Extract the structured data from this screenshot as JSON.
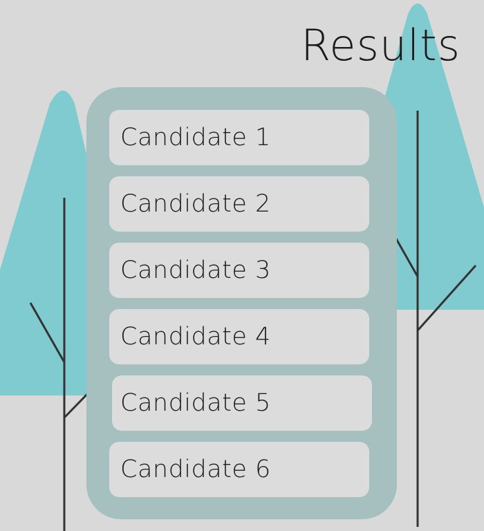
{
  "header": {
    "title": "Results"
  },
  "candidates": [
    {
      "label": "Candidate 1"
    },
    {
      "label": "Candidate 2"
    },
    {
      "label": "Candidate 3"
    },
    {
      "label": "Candidate 4"
    },
    {
      "label": "Candidate 5"
    },
    {
      "label": "Candidate 6"
    }
  ],
  "theme": {
    "background": "#d9d9d9",
    "tree_foliage": "#80cbcf",
    "tree_trunk": "#333333",
    "panel": "#a6c0bf",
    "card": "#dcdcdc"
  },
  "decorations": {
    "left_tree_icon": "tree-icon",
    "right_tree_icon": "tree-icon"
  }
}
